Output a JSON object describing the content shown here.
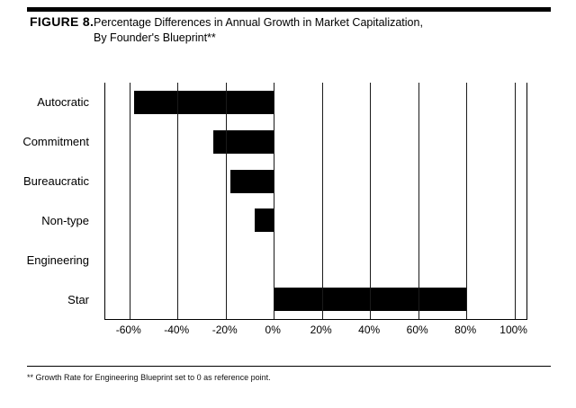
{
  "figure": {
    "label": "FIGURE 8.",
    "title_line1": "Percentage Differences in Annual Growth in Market Capitalization,",
    "title_line2": "By Founder's Blueprint**"
  },
  "footnote": "** Growth Rate for Engineering Blueprint set to 0 as reference point.",
  "chart_data": {
    "type": "bar",
    "orientation": "horizontal",
    "title": "Percentage Differences in Annual Growth in Market Capitalization, By Founder's Blueprint",
    "categories": [
      "Autocratic",
      "Commitment",
      "Bureaucratic",
      "Non-type",
      "Engineering",
      "Star"
    ],
    "values": [
      -58,
      -25,
      -18,
      -8,
      0,
      80
    ],
    "xlabel": "",
    "ylabel": "",
    "xlim": [
      -70,
      105
    ],
    "ticks": [
      -60,
      -40,
      -20,
      0,
      20,
      40,
      60,
      80,
      100
    ],
    "tick_labels": [
      "-60%",
      "-40%",
      "-20%",
      "0%",
      "20%",
      "40%",
      "60%",
      "80%",
      "100%"
    ],
    "bar_color": "#000000",
    "grid": true,
    "legend": "none",
    "reference_note": "Engineering Blueprint set to 0 as reference point"
  }
}
